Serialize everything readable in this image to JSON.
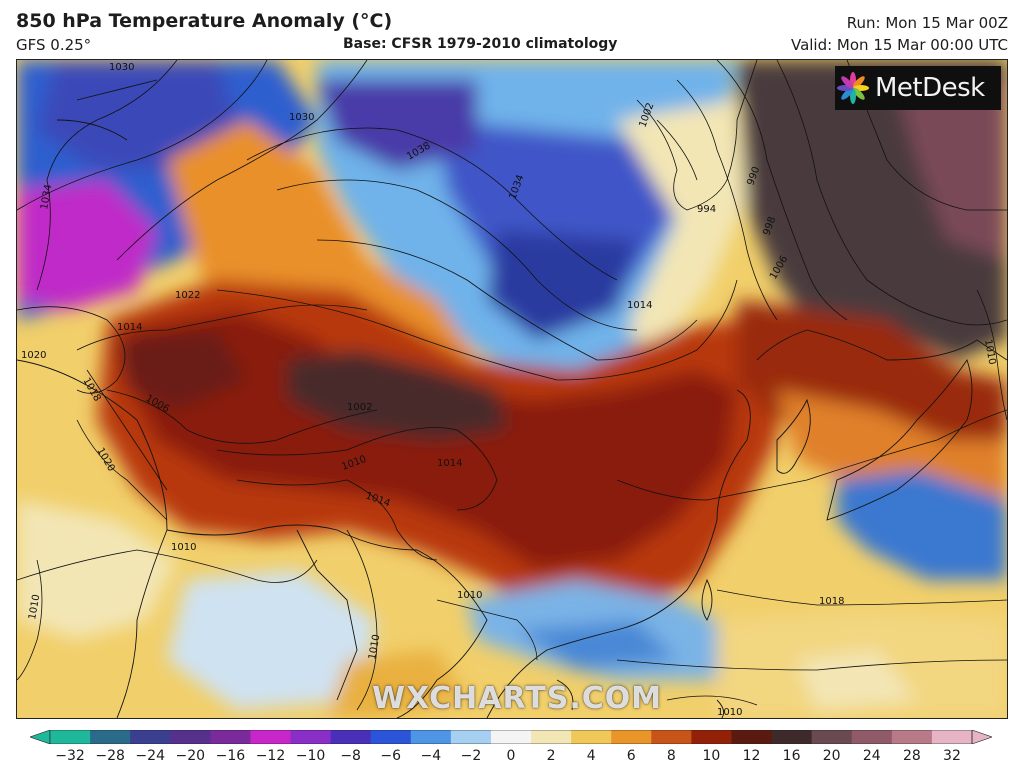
{
  "header": {
    "title": "850 hPa Temperature Anomaly (°C)",
    "model": "GFS 0.25°",
    "base": "Base: CFSR 1979-2010 climatology",
    "run": "Run: Mon 15 Mar 00Z",
    "valid": "Valid: Mon 15 Mar 00:00 UTC"
  },
  "brand": {
    "name": "MetDesk",
    "icon": "metdesk-pinwheel-icon"
  },
  "watermark": "WXCHARTS.COM",
  "isobar_labels": [
    "1030",
    "1030",
    "1034",
    "1038",
    "1034",
    "1002",
    "994",
    "990",
    "998",
    "1006",
    "1022",
    "1014",
    "1020",
    "1018",
    "1006",
    "1002",
    "1010",
    "1014",
    "1014",
    "1020",
    "1010",
    "1010",
    "1010",
    "1018",
    "1010",
    "1010",
    "1014",
    "1010"
  ],
  "colorbar": {
    "ticks": [
      "−32",
      "−28",
      "−24",
      "−20",
      "−16",
      "−12",
      "−10",
      "−8",
      "−6",
      "−4",
      "−2",
      "0",
      "2",
      "4",
      "6",
      "8",
      "10",
      "12",
      "16",
      "20",
      "24",
      "28",
      "32"
    ],
    "colors": [
      "#1fb89a",
      "#2a6b8a",
      "#3a3f8f",
      "#55318c",
      "#7a2a9a",
      "#c826c8",
      "#8a2ec8",
      "#4a2fb8",
      "#2a55d8",
      "#4f95e6",
      "#a6cff2",
      "#f4f4f4",
      "#f3e6b5",
      "#f0c85a",
      "#e9952a",
      "#c75418",
      "#932108",
      "#5a1a10",
      "#3e2a2a",
      "#6a4a50",
      "#8f5a6a",
      "#b87a88",
      "#e6b4c4"
    ]
  }
}
